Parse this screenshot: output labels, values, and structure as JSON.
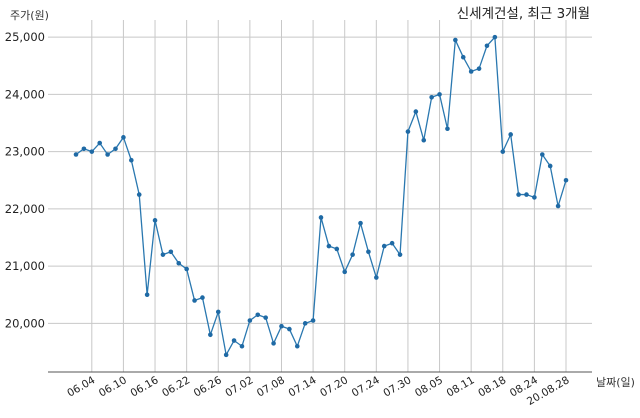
{
  "chart_data": {
    "type": "line",
    "title": "신세계건설, 최근 3개월",
    "ylabel": "주가(원)",
    "xlabel": "날짜(일)",
    "ylim": [
      19150,
      25300
    ],
    "yticks": [
      20000,
      21000,
      22000,
      23000,
      24000,
      25000
    ],
    "ytick_labels": [
      "20,000",
      "21,000",
      "22,000",
      "23,000",
      "24,000",
      "25,000"
    ],
    "xtick_labels": [
      "06.04",
      "06.10",
      "06.16",
      "06.22",
      "06.26",
      "07.02",
      "07.08",
      "07.14",
      "07.20",
      "07.24",
      "07.30",
      "08.05",
      "08.11",
      "08.18",
      "08.24",
      "20.08.28"
    ],
    "xtick_index": [
      2,
      6,
      10,
      14,
      18,
      22,
      26,
      30,
      34,
      38,
      42,
      46,
      50,
      54,
      58,
      62
    ],
    "grid": true,
    "series": [
      {
        "color": "#1f77b4",
        "values": [
          22950,
          23050,
          23000,
          23150,
          22950,
          23050,
          23250,
          22850,
          22250,
          20500,
          21800,
          21200,
          21250,
          21050,
          20950,
          20400,
          20450,
          19800,
          20200,
          19450,
          19700,
          19600,
          20050,
          20150,
          20100,
          19650,
          19950,
          19900,
          19600,
          20000,
          20050,
          21850,
          21350,
          21300,
          20900,
          21200,
          21750,
          21250,
          20800,
          21350,
          21400,
          21200,
          23350,
          23700,
          23200,
          23950,
          24000,
          23400,
          24950,
          24650,
          24400,
          24450,
          24850,
          25000,
          23000,
          23300,
          22250,
          22250,
          22200,
          22950,
          22750,
          22050,
          22500
        ]
      }
    ]
  }
}
